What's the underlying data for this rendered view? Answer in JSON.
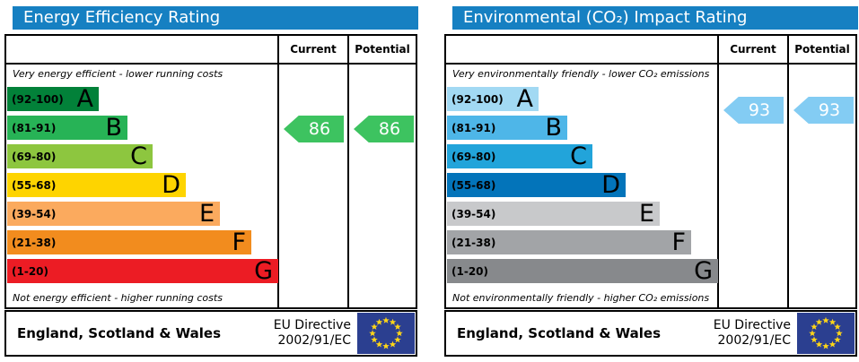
{
  "page_background": "#ffffff",
  "eu_flag": {
    "background": "#2b3f90",
    "star_color": "#ffd617"
  },
  "chart_data": [
    {
      "type": "bar",
      "subtype": "epc-rating-scale",
      "title": "Energy Efficiency Rating",
      "title_bar_color": "#1680c2",
      "columns": [
        "Current",
        "Potential"
      ],
      "top_note": "Very energy efficient - lower running costs",
      "bottom_note": "Not energy efficient - higher running costs",
      "bands": [
        {
          "letter": "A",
          "range": "(92-100)",
          "color": "#028139",
          "length": 102
        },
        {
          "letter": "B",
          "range": "(81-91)",
          "color": "#27b356",
          "length": 134
        },
        {
          "letter": "C",
          "range": "(69-80)",
          "color": "#8dc63f",
          "length": 162
        },
        {
          "letter": "D",
          "range": "(55-68)",
          "color": "#fed400",
          "length": 199
        },
        {
          "letter": "E",
          "range": "(39-54)",
          "color": "#fbaa5e",
          "length": 237
        },
        {
          "letter": "F",
          "range": "(21-38)",
          "color": "#f28c1e",
          "length": 272
        },
        {
          "letter": "G",
          "range": "(1-20)",
          "color": "#ec1c24",
          "length": 302
        }
      ],
      "current": 86,
      "potential": 86,
      "arrow_color": "#3dc360",
      "footer": {
        "region": "England, Scotland & Wales",
        "directive": [
          "EU Directive",
          "2002/91/EC"
        ]
      }
    },
    {
      "type": "bar",
      "subtype": "epc-rating-scale",
      "title": "Environmental (CO₂) Impact Rating",
      "title_bar_color": "#1680c2",
      "columns": [
        "Current",
        "Potential"
      ],
      "top_note": "Very environmentally friendly - lower CO₂ emissions",
      "bottom_note": "Not environmentally friendly - higher CO₂ emissions",
      "bands": [
        {
          "letter": "A",
          "range": "(92-100)",
          "color": "#a2d9f3",
          "length": 102
        },
        {
          "letter": "B",
          "range": "(81-91)",
          "color": "#4eb6e8",
          "length": 134
        },
        {
          "letter": "C",
          "range": "(69-80)",
          "color": "#22a4da",
          "length": 162
        },
        {
          "letter": "D",
          "range": "(55-68)",
          "color": "#0374ba",
          "length": 199
        },
        {
          "letter": "E",
          "range": "(39-54)",
          "color": "#c8c9cb",
          "length": 237
        },
        {
          "letter": "F",
          "range": "(21-38)",
          "color": "#a2a4a7",
          "length": 272
        },
        {
          "letter": "G",
          "range": "(1-20)",
          "color": "#87898c",
          "length": 302
        }
      ],
      "current": 93,
      "potential": 93,
      "arrow_color": "#83ccf3",
      "footer": {
        "region": "England, Scotland & Wales",
        "directive": [
          "EU Directive",
          "2002/91/EC"
        ]
      }
    }
  ]
}
